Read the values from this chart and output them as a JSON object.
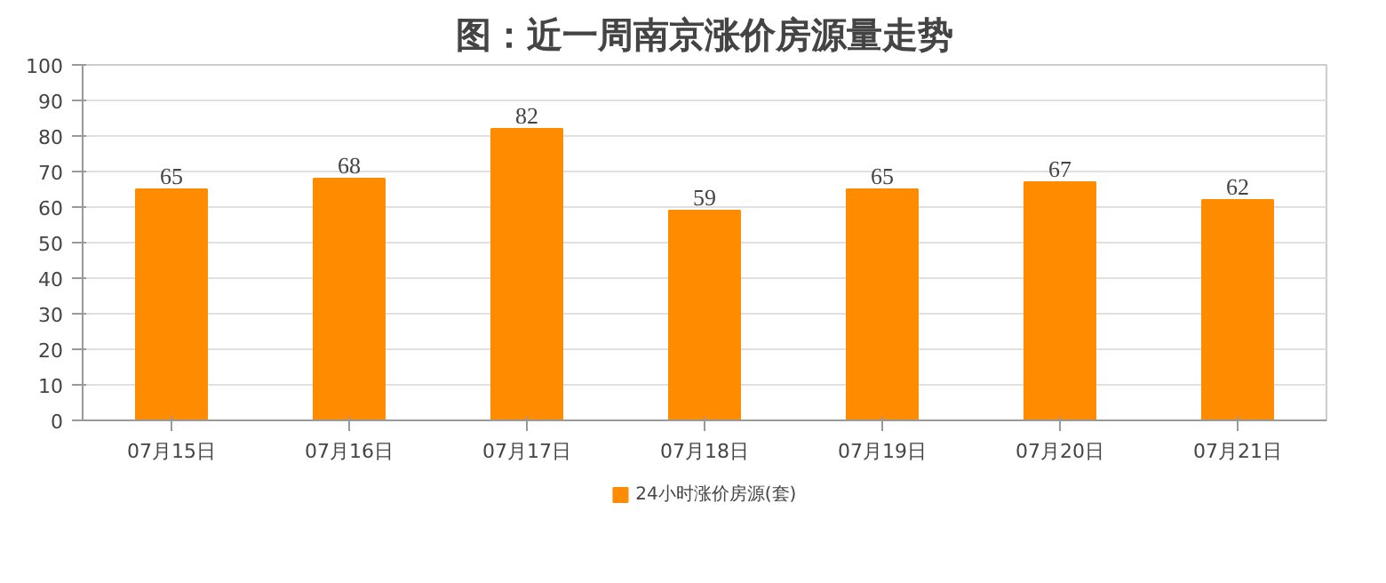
{
  "chart_data": {
    "type": "bar",
    "title": "图：近一周南京涨价房源量走势",
    "categories": [
      "07月15日",
      "07月16日",
      "07月17日",
      "07月18日",
      "07月19日",
      "07月20日",
      "07月21日"
    ],
    "series": [
      {
        "name": "24小时涨价房源(套)",
        "color": "#ff8c00",
        "values": [
          65,
          68,
          82,
          59,
          65,
          67,
          62
        ]
      }
    ],
    "ylim": [
      0,
      100
    ],
    "yticks": [
      0,
      10,
      20,
      30,
      40,
      50,
      60,
      70,
      80,
      90,
      100
    ],
    "grid": "y",
    "legend": "bottom",
    "data_labels": true
  }
}
